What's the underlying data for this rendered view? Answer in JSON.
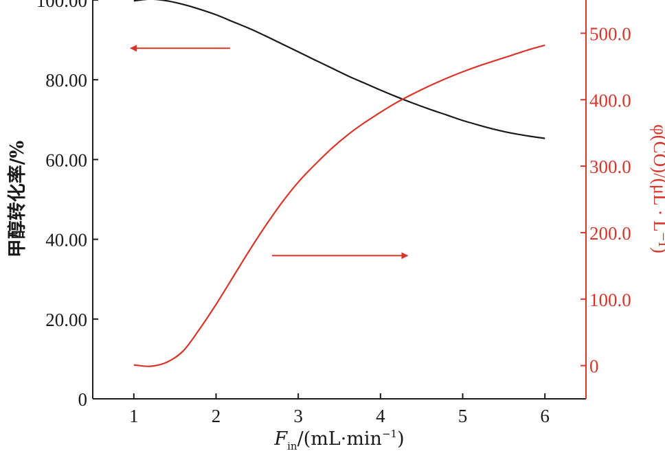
{
  "colors": {
    "left_axis": "#1a1a1a",
    "right_axis": "#d8352a",
    "background": "#ffffff"
  },
  "chart_data": {
    "type": "line",
    "xlabel": {
      "var": "F",
      "sub": "in",
      "unit_prefix": "/(mL·min",
      "unit_exp": "−1",
      "unit_suffix": ")"
    },
    "ylabel_left": "甲醇转化率/%",
    "ylabel_right": "φ(CO)/(μL · L⁻¹)",
    "xlim": [
      0.5,
      6.5
    ],
    "ylim_left": [
      0,
      100
    ],
    "ylim_right": [
      -50,
      550
    ],
    "x_ticks": [
      1,
      2,
      3,
      4,
      5,
      6
    ],
    "x_tick_labels": [
      "1",
      "2",
      "3",
      "4",
      "5",
      "6"
    ],
    "y_left_ticks": [
      0,
      20,
      40,
      60,
      80,
      100
    ],
    "y_left_tick_labels": [
      "0",
      "20.00",
      "40.00",
      "60.00",
      "80.00",
      "100.00"
    ],
    "y_right_ticks": [
      0,
      100,
      200,
      300,
      400,
      500
    ],
    "y_right_tick_labels": [
      "0",
      "100.0",
      "200.0",
      "300.0",
      "400.0",
      "500.0"
    ],
    "grid": false,
    "series": [
      {
        "axis": "left",
        "color": "#1a1a1a",
        "x": [
          1.0,
          1.2,
          1.4,
          1.6,
          1.8,
          2.0,
          2.2,
          2.4,
          2.6,
          2.8,
          3.0,
          3.2,
          3.4,
          3.6,
          3.8,
          4.0,
          4.2,
          4.4,
          4.6,
          4.8,
          5.0,
          5.2,
          5.4,
          5.6,
          5.8,
          6.0
        ],
        "values": [
          99.8,
          100.2,
          99.8,
          98.9,
          97.7,
          96.3,
          94.6,
          92.9,
          91.0,
          89.0,
          87.0,
          85.0,
          83.0,
          81.0,
          79.2,
          77.4,
          75.7,
          74.1,
          72.6,
          71.2,
          69.8,
          68.6,
          67.5,
          66.6,
          65.9,
          65.3
        ]
      },
      {
        "axis": "right",
        "color": "#d8352a",
        "x": [
          1.0,
          1.2,
          1.4,
          1.6,
          1.8,
          2.0,
          2.2,
          2.4,
          2.6,
          2.8,
          3.0,
          3.2,
          3.4,
          3.6,
          3.8,
          4.0,
          4.2,
          4.4,
          4.6,
          4.8,
          5.0,
          5.2,
          5.4,
          5.6,
          5.8,
          6.0
        ],
        "values": [
          1,
          -1,
          5,
          22,
          55,
          92,
          132,
          172,
          210,
          245,
          276,
          302,
          326,
          347,
          365,
          381,
          396,
          409,
          421,
          432,
          442,
          451,
          459,
          467,
          475,
          482
        ]
      }
    ],
    "annotations": [
      {
        "type": "arrow",
        "direction": "left",
        "points_to": "left axis",
        "color": "#d8352a",
        "x_from": 2.17,
        "x_to": 0.96,
        "y_left": 87.9
      },
      {
        "type": "arrow",
        "direction": "right",
        "points_to": "right axis",
        "color": "#d8352a",
        "x_from": 2.68,
        "x_to": 4.33,
        "y_left": 35.9
      }
    ]
  }
}
